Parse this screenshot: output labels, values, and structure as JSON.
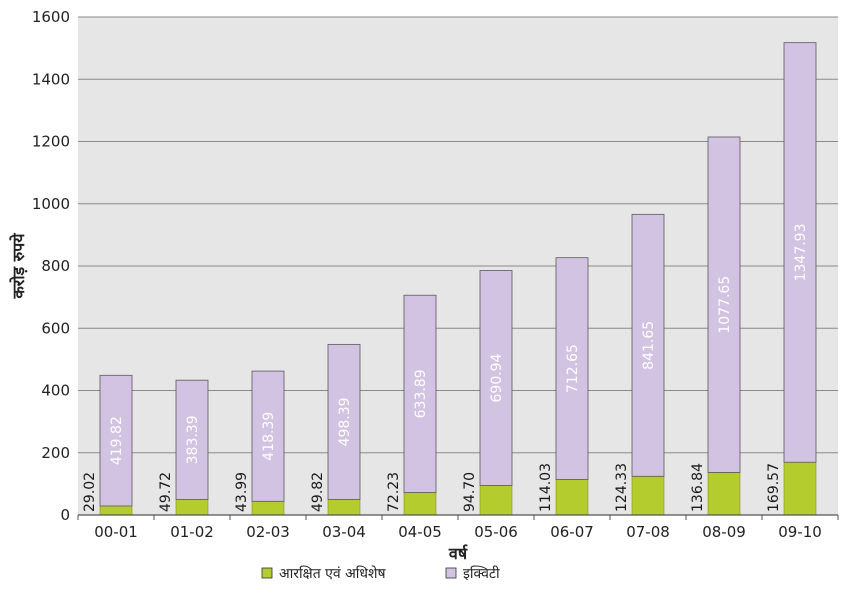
{
  "chart_data": {
    "type": "bar",
    "stacked": true,
    "categories": [
      "00-01",
      "01-02",
      "02-03",
      "03-04",
      "04-05",
      "05-06",
      "06-07",
      "07-08",
      "08-09",
      "09-10"
    ],
    "series": [
      {
        "name": "आरक्षित एवं अधिशेष",
        "color": "#b5cc2f",
        "values": [
          29.02,
          49.72,
          43.99,
          49.82,
          72.23,
          94.7,
          114.03,
          124.33,
          136.84,
          169.57
        ],
        "labels": [
          "29.02",
          "49.72",
          "43.99",
          "49.82",
          "72.23",
          "94.70",
          "114.03",
          "124.33",
          "136.84",
          "169.57"
        ]
      },
      {
        "name": "इक्विटी",
        "color": "#d2c3e3",
        "values": [
          419.82,
          383.39,
          418.39,
          498.39,
          633.89,
          690.94,
          712.65,
          841.65,
          1077.65,
          1347.93
        ],
        "labels": [
          "419.82",
          "383.39",
          "418.39",
          "498.39",
          "633.89",
          "690.94",
          "712.65",
          "841.65",
          "1077.65",
          "1347.93"
        ]
      }
    ],
    "xlabel": "वर्ष",
    "ylabel": "करोड़ रुपये",
    "ylim": [
      0,
      1600
    ],
    "yticks": [
      "0",
      "200",
      "400",
      "600",
      "800",
      "1000",
      "1200",
      "1400",
      "1600"
    ],
    "grid": true,
    "legend_position": "bottom-center",
    "plot_background": "#e6e6e6"
  }
}
